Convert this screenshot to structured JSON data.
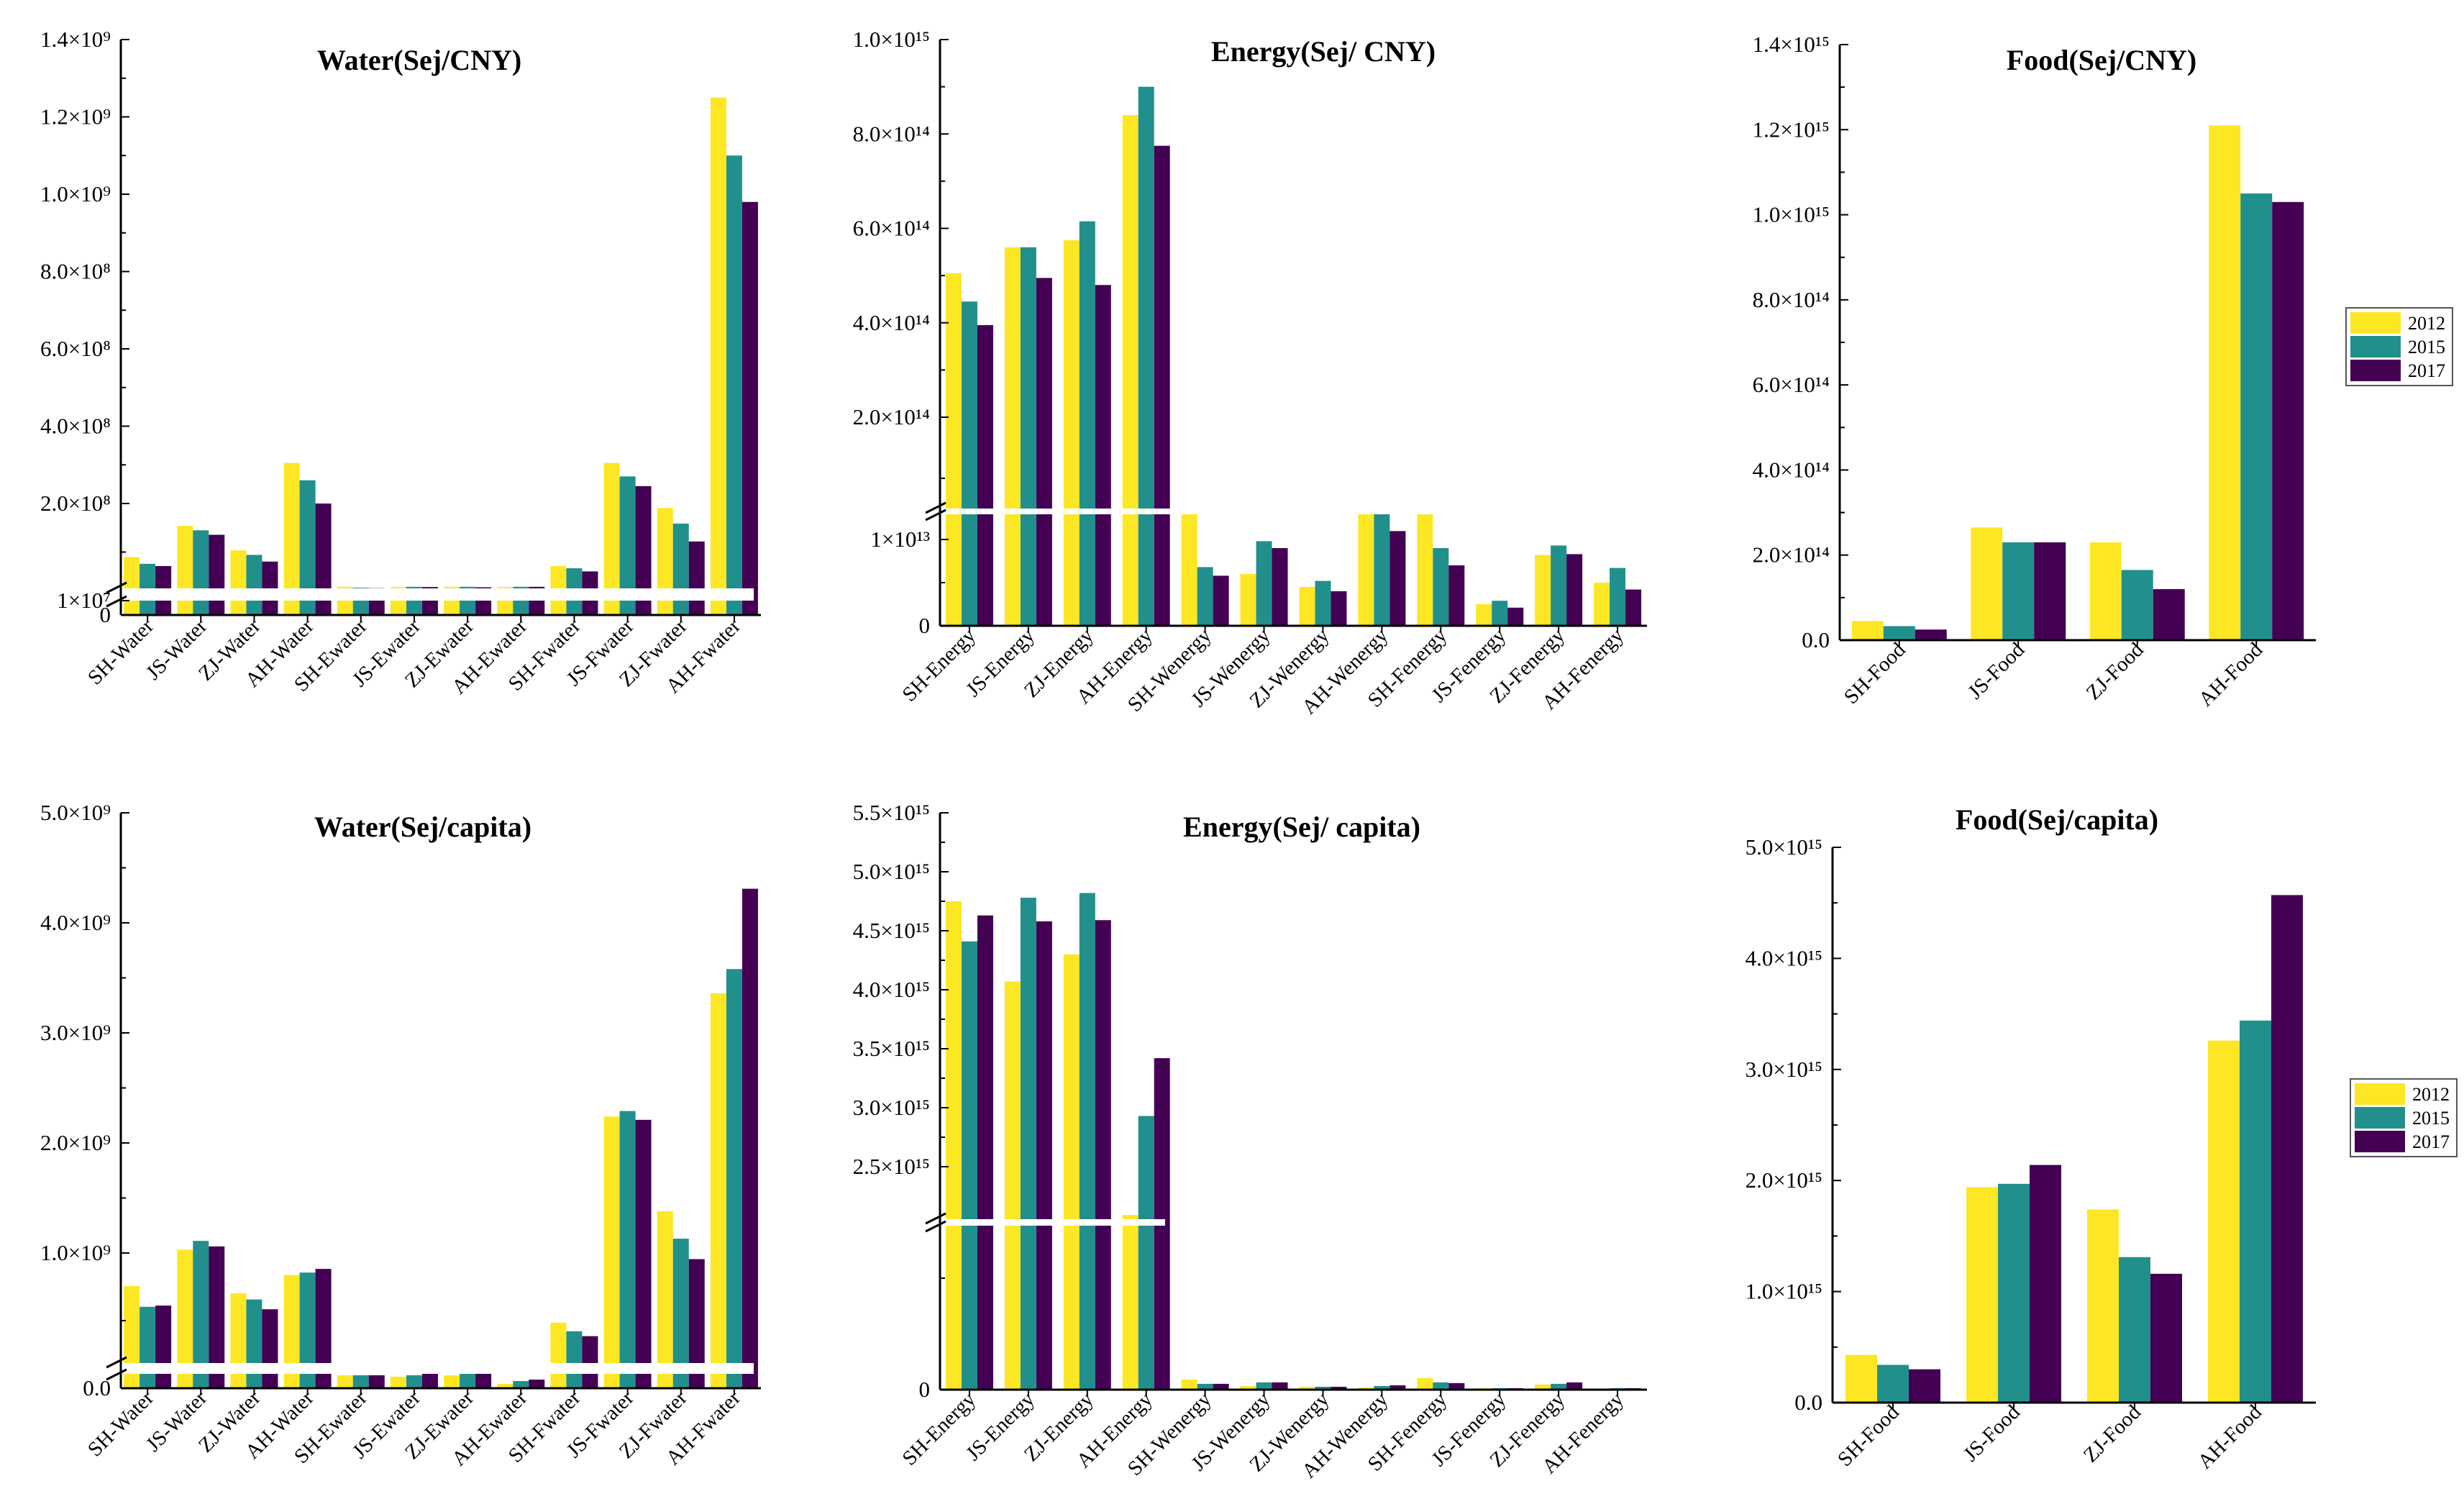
{
  "legend": [
    "2012",
    "2015",
    "2017"
  ],
  "colors": {
    "2012": "#FDE725",
    "2015": "#21908C",
    "2017": "#440154"
  },
  "chart_data": [
    {
      "type": "bar",
      "title": "Water(Sej/CNY)",
      "categories": [
        "SH-Water",
        "JS-Water",
        "ZJ-Water",
        "AH-Water",
        "SH-Ewater",
        "JS-Ewater",
        "ZJ-Ewater",
        "AH-Ewater",
        "SH-Fwater",
        "JS-Fwater",
        "ZJ-Fwater",
        "AH-Fwater"
      ],
      "series": [
        {
          "name": "2012",
          "values": [
            80000000.0,
            150000000.0,
            95000000.0,
            305000000.0,
            13500000.0,
            13000000.0,
            13500000.0,
            13000000.0,
            60000000.0,
            305000000.0,
            190000000.0,
            1250000000.0
          ]
        },
        {
          "name": "2015",
          "values": [
            65000000.0,
            140000000.0,
            85000000.0,
            260000000.0,
            11500000.0,
            13500000.0,
            13500000.0,
            13500000.0,
            55000000.0,
            270000000.0,
            155000000.0,
            1100000000.0
          ]
        },
        {
          "name": "2017",
          "values": [
            60000000.0,
            130000000.0,
            70000000.0,
            200000000.0,
            10500000.0,
            13000000.0,
            12500000.0,
            13500000.0,
            48000000.0,
            245000000.0,
            115000000.0,
            980000000.0
          ]
        }
      ],
      "y_ticks": [
        {
          "label": "0",
          "value": 0
        },
        {
          "label": "1×10⁷",
          "value": 10000000.0
        },
        {
          "label": "2.0×10⁸",
          "value": 200000000.0
        },
        {
          "label": "4.0×10⁸",
          "value": 400000000.0
        },
        {
          "label": "6.0×10⁸",
          "value": 600000000.0
        },
        {
          "label": "8.0×10⁸",
          "value": 800000000.0
        },
        {
          "label": "1.0×10⁹",
          "value": 1000000000.0
        },
        {
          "label": "1.2×10⁹",
          "value": 1200000000.0
        },
        {
          "label": "1.4×10⁹",
          "value": 1400000000.0
        }
      ],
      "axis_break": true,
      "legend_shown": false
    },
    {
      "type": "bar",
      "title": "Energy(Sej/ CNY)",
      "categories": [
        "SH-Energy",
        "JS-Energy",
        "ZJ-Energy",
        "AH-Energy",
        "SH-Wenergy",
        "JS-Wenergy",
        "ZJ-Wenergy",
        "AH-Wenergy",
        "SH-Fenergy",
        "JS-Fenergy",
        "ZJ-Fenergy",
        "AH-Fenergy"
      ],
      "series": [
        {
          "name": "2012",
          "values": [
            505000000000000.0,
            560000000000000.0,
            575000000000000.0,
            840000000000000.0,
            13000000000000.0,
            6000000000000.0,
            4500000000000.0,
            13000000000000.0,
            13000000000000.0,
            2500000000000.0,
            8200000000000.0,
            5000000000000.0
          ]
        },
        {
          "name": "2015",
          "values": [
            445000000000000.0,
            560000000000000.0,
            615000000000000.0,
            900000000000000.0,
            6800000000000.0,
            9800000000000.0,
            5200000000000.0,
            13000000000000.0,
            9000000000000.0,
            2900000000000.0,
            9300000000000.0,
            6700000000000.0
          ]
        },
        {
          "name": "2017",
          "values": [
            395000000000000.0,
            495000000000000.0,
            480000000000000.0,
            775000000000000.0,
            5800000000000.0,
            9000000000000.0,
            4000000000000.0,
            11000000000000.0,
            7000000000000.0,
            2100000000000.0,
            8300000000000.0,
            4200000000000.0
          ]
        }
      ],
      "y_ticks": [
        {
          "label": "0",
          "value": 0
        },
        {
          "label": "1×10¹³",
          "value": 10000000000000.0
        },
        {
          "label": "2.0×10¹⁴",
          "value": 200000000000000.0
        },
        {
          "label": "4.0×10¹⁴",
          "value": 400000000000000.0
        },
        {
          "label": "6.0×10¹⁴",
          "value": 600000000000000.0
        },
        {
          "label": "8.0×10¹⁴",
          "value": 800000000000000.0
        },
        {
          "label": "1.0×10¹⁵",
          "value": 1000000000000000.0
        }
      ],
      "axis_break": true,
      "legend_shown": false
    },
    {
      "type": "bar",
      "title": "Food(Sej/CNY)",
      "categories": [
        "SH-Food",
        "JS-Food",
        "ZJ-Food",
        "AH-Food"
      ],
      "series": [
        {
          "name": "2012",
          "values": [
            45000000000000.0,
            265000000000000.0,
            230000000000000.0,
            1210000000000000.0
          ]
        },
        {
          "name": "2015",
          "values": [
            33000000000000.0,
            230000000000000.0,
            165000000000000.0,
            1050000000000000.0
          ]
        },
        {
          "name": "2017",
          "values": [
            25000000000000.0,
            230000000000000.0,
            120000000000000.0,
            1030000000000000.0
          ]
        }
      ],
      "y_ticks": [
        {
          "label": "0.0",
          "value": 0
        },
        {
          "label": "2.0×10¹⁴",
          "value": 200000000000000.0
        },
        {
          "label": "4.0×10¹⁴",
          "value": 400000000000000.0
        },
        {
          "label": "6.0×10¹⁴",
          "value": 600000000000000.0
        },
        {
          "label": "8.0×10¹⁴",
          "value": 800000000000000.0
        },
        {
          "label": "1.0×10¹⁵",
          "value": 1000000000000000.0
        },
        {
          "label": "1.2×10¹⁵",
          "value": 1200000000000000.0
        },
        {
          "label": "1.4×10¹⁵",
          "value": 1400000000000000.0
        }
      ],
      "axis_break": false,
      "legend_shown": true
    },
    {
      "type": "bar",
      "title": "Water(Sej/capita)",
      "categories": [
        "SH-Water",
        "JS-Water",
        "ZJ-Water",
        "AH-Water",
        "SH-Ewater",
        "JS-Ewater",
        "ZJ-Ewater",
        "AH-Ewater",
        "SH-Fwater",
        "JS-Fwater",
        "ZJ-Fwater",
        "AH-Fwater"
      ],
      "series": [
        {
          "name": "2012",
          "values": [
            730000000.0,
            1030000000.0,
            670000000.0,
            820000000.0,
            90000000.0,
            80000000.0,
            90000000.0,
            30000000.0,
            430000000.0,
            2240000000.0,
            1380000000.0,
            3360000000.0
          ]
        },
        {
          "name": "2015",
          "values": [
            560000000.0,
            1110000000.0,
            620000000.0,
            840000000.0,
            90000000.0,
            90000000.0,
            100000000.0,
            50000000.0,
            360000000.0,
            2290000000.0,
            1130000000.0,
            3580000000.0
          ]
        },
        {
          "name": "2017",
          "values": [
            570000000.0,
            1060000000.0,
            540000000.0,
            870000000.0,
            90000000.0,
            100000000.0,
            100000000.0,
            60000000.0,
            320000000.0,
            2210000000.0,
            950000000.0,
            4310000000.0
          ]
        }
      ],
      "y_ticks": [
        {
          "label": "0.0",
          "value": 0
        },
        {
          "label": "1.0×10⁹",
          "value": 1000000000.0
        },
        {
          "label": "2.0×10⁹",
          "value": 2000000000.0
        },
        {
          "label": "3.0×10⁹",
          "value": 3000000000.0
        },
        {
          "label": "4.0×10⁹",
          "value": 4000000000.0
        },
        {
          "label": "5.0×10⁹",
          "value": 5000000000.0
        }
      ],
      "axis_break": true,
      "legend_shown": false
    },
    {
      "type": "bar",
      "title": "Energy(Sej/ capita)",
      "categories": [
        "SH-Energy",
        "JS-Energy",
        "ZJ-Energy",
        "AH-Energy",
        "SH-Wenergy",
        "JS-Wenergy",
        "ZJ-Wenergy",
        "AH-Wenergy",
        "SH-Fenergy",
        "JS-Fenergy",
        "ZJ-Fenergy",
        "AH-Fenergy"
      ],
      "series": [
        {
          "name": "2012",
          "values": [
            4750000000000000.0,
            4070000000000000.0,
            4300000000000000.0,
            2270000000000000.0,
            140000000000000.0,
            50000000000000.0,
            40000000000000.0,
            30000000000000.0,
            160000000000000.0,
            20000000000000.0,
            70000000000000.0,
            10000000000000.0
          ]
        },
        {
          "name": "2015",
          "values": [
            4410000000000000.0,
            4780000000000000.0,
            4820000000000000.0,
            2930000000000000.0,
            80000000000000.0,
            100000000000000.0,
            40000000000000.0,
            50000000000000.0,
            100000000000000.0,
            20000000000000.0,
            80000000000000.0,
            20000000000000.0
          ]
        },
        {
          "name": "2017",
          "values": [
            4630000000000000.0,
            4580000000000000.0,
            4590000000000000.0,
            3420000000000000.0,
            80000000000000.0,
            100000000000000.0,
            40000000000000.0,
            60000000000000.0,
            90000000000000.0,
            20000000000000.0,
            100000000000000.0,
            20000000000000.0
          ]
        }
      ],
      "y_ticks": [
        {
          "label": "0",
          "value": 0
        },
        {
          "label": "2.5×10¹⁵",
          "value": 2500000000000000.0
        },
        {
          "label": "3.0×10¹⁵",
          "value": 3000000000000000.0
        },
        {
          "label": "3.5×10¹⁵",
          "value": 3500000000000000.0
        },
        {
          "label": "4.0×10¹⁵",
          "value": 4000000000000000.0
        },
        {
          "label": "4.5×10¹⁵",
          "value": 4500000000000000.0
        },
        {
          "label": "5.0×10¹⁵",
          "value": 5000000000000000.0
        },
        {
          "label": "5.5×10¹⁵",
          "value": 5500000000000000.0
        }
      ],
      "axis_break": true,
      "legend_shown": false
    },
    {
      "type": "bar",
      "title": "Food(Sej/capita)",
      "categories": [
        "SH-Food",
        "JS-Food",
        "ZJ-Food",
        "AH-Food"
      ],
      "series": [
        {
          "name": "2012",
          "values": [
            430000000000000.0,
            1940000000000000.0,
            1740000000000000.0,
            3260000000000000.0
          ]
        },
        {
          "name": "2015",
          "values": [
            340000000000000.0,
            1970000000000000.0,
            1310000000000000.0,
            3440000000000000.0
          ]
        },
        {
          "name": "2017",
          "values": [
            300000000000000.0,
            2140000000000000.0,
            1160000000000000.0,
            4570000000000000.0
          ]
        }
      ],
      "y_ticks": [
        {
          "label": "0.0",
          "value": 0
        },
        {
          "label": "1.0×10¹⁵",
          "value": 1000000000000000.0
        },
        {
          "label": "2.0×10¹⁵",
          "value": 2000000000000000.0
        },
        {
          "label": "3.0×10¹⁵",
          "value": 3000000000000000.0
        },
        {
          "label": "4.0×10¹⁵",
          "value": 4000000000000000.0
        },
        {
          "label": "5.0×10¹⁵",
          "value": 5000000000000000.0
        }
      ],
      "axis_break": false,
      "legend_shown": true
    }
  ]
}
